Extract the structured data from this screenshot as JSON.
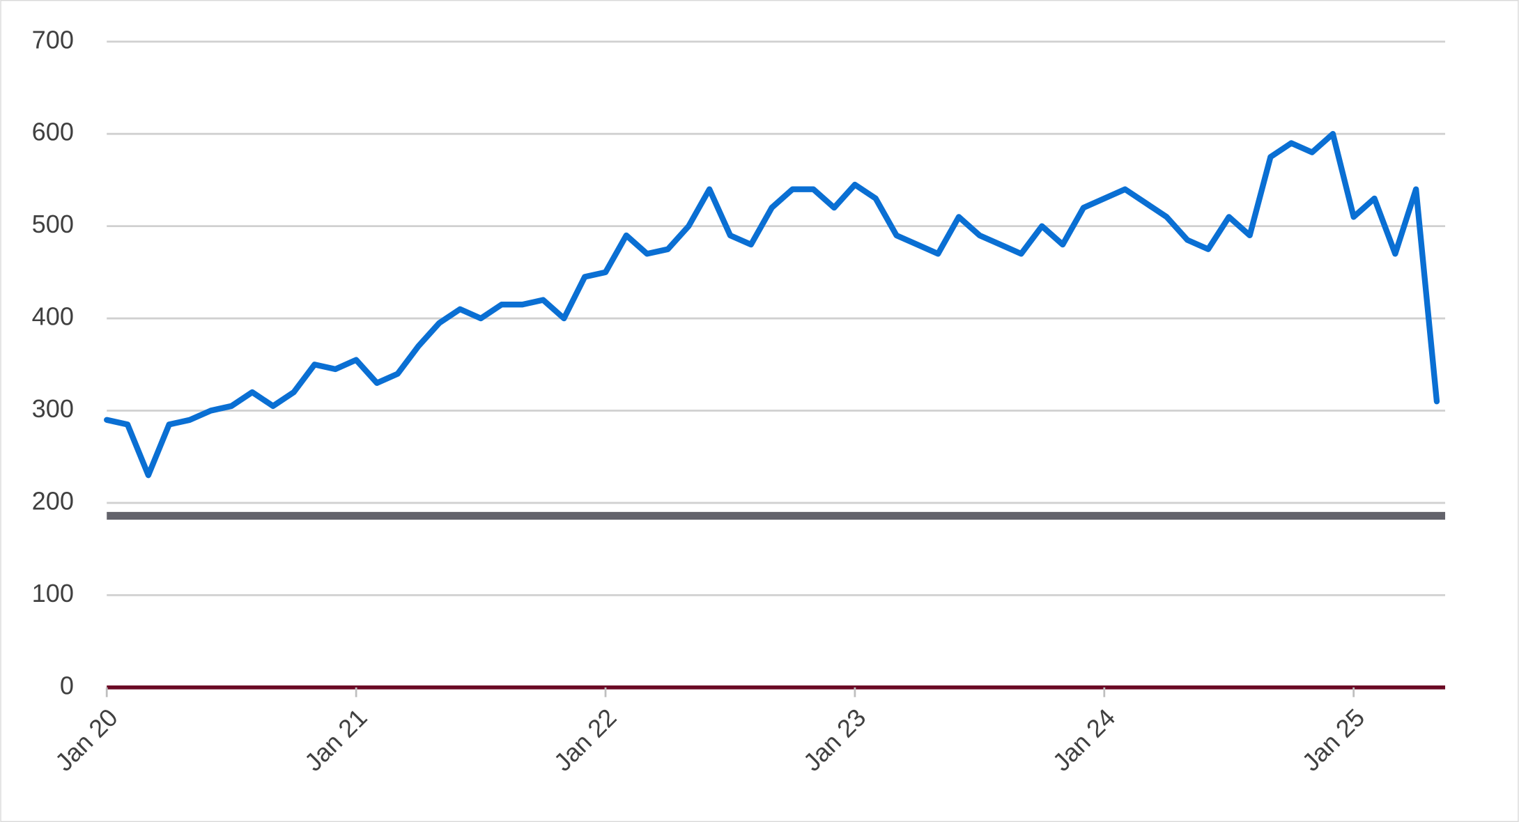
{
  "chart_data": {
    "type": "line",
    "x": [
      "Jan 20",
      "Feb 20",
      "Mar 20",
      "Apr 20",
      "May 20",
      "Jun 20",
      "Jul 20",
      "Aug 20",
      "Sep 20",
      "Oct 20",
      "Nov 20",
      "Dec 20",
      "Jan 21",
      "Feb 21",
      "Mar 21",
      "Apr 21",
      "May 21",
      "Jun 21",
      "Jul 21",
      "Aug 21",
      "Sep 21",
      "Oct 21",
      "Nov 21",
      "Dec 21",
      "Jan 22",
      "Feb 22",
      "Mar 22",
      "Apr 22",
      "May 22",
      "Jun 22",
      "Jul 22",
      "Aug 22",
      "Sep 22",
      "Oct 22",
      "Nov 22",
      "Dec 22",
      "Jan 23",
      "Feb 23",
      "Mar 23",
      "Apr 23",
      "May 23",
      "Jun 23",
      "Jul 23",
      "Aug 23",
      "Sep 23",
      "Oct 23",
      "Nov 23",
      "Dec 23",
      "Jan 24",
      "Feb 24",
      "Mar 24",
      "Apr 24",
      "May 24",
      "Jun 24",
      "Jul 24",
      "Aug 24",
      "Sep 24",
      "Oct 24",
      "Nov 24",
      "Dec 24",
      "Jan 25",
      "Feb 25",
      "Mar 25",
      "Apr 25",
      "May 25"
    ],
    "series": [
      {
        "color": "#0a6fd3",
        "values": [
          290,
          285,
          230,
          285,
          290,
          300,
          305,
          320,
          305,
          320,
          350,
          345,
          355,
          330,
          340,
          370,
          395,
          410,
          400,
          415,
          415,
          420,
          400,
          445,
          450,
          490,
          470,
          475,
          500,
          540,
          490,
          480,
          520,
          540,
          540,
          520,
          545,
          530,
          490,
          480,
          470,
          510,
          490,
          480,
          470,
          500,
          480,
          520,
          530,
          540,
          525,
          510,
          485,
          475,
          510,
          490,
          575,
          590,
          580,
          600,
          510,
          530,
          470,
          540,
          310
        ]
      }
    ],
    "reference_lines": [
      {
        "value": 186,
        "color": "#63636b"
      }
    ],
    "axis_color": "#6b0a25",
    "ylim": [
      0,
      700
    ],
    "yticks": [
      0,
      100,
      200,
      300,
      400,
      500,
      600,
      700
    ],
    "xticks": [
      "Jan 20",
      "Jan 21",
      "Jan 22",
      "Jan 23",
      "Jan 24",
      "Jan 25"
    ],
    "grid": true
  }
}
